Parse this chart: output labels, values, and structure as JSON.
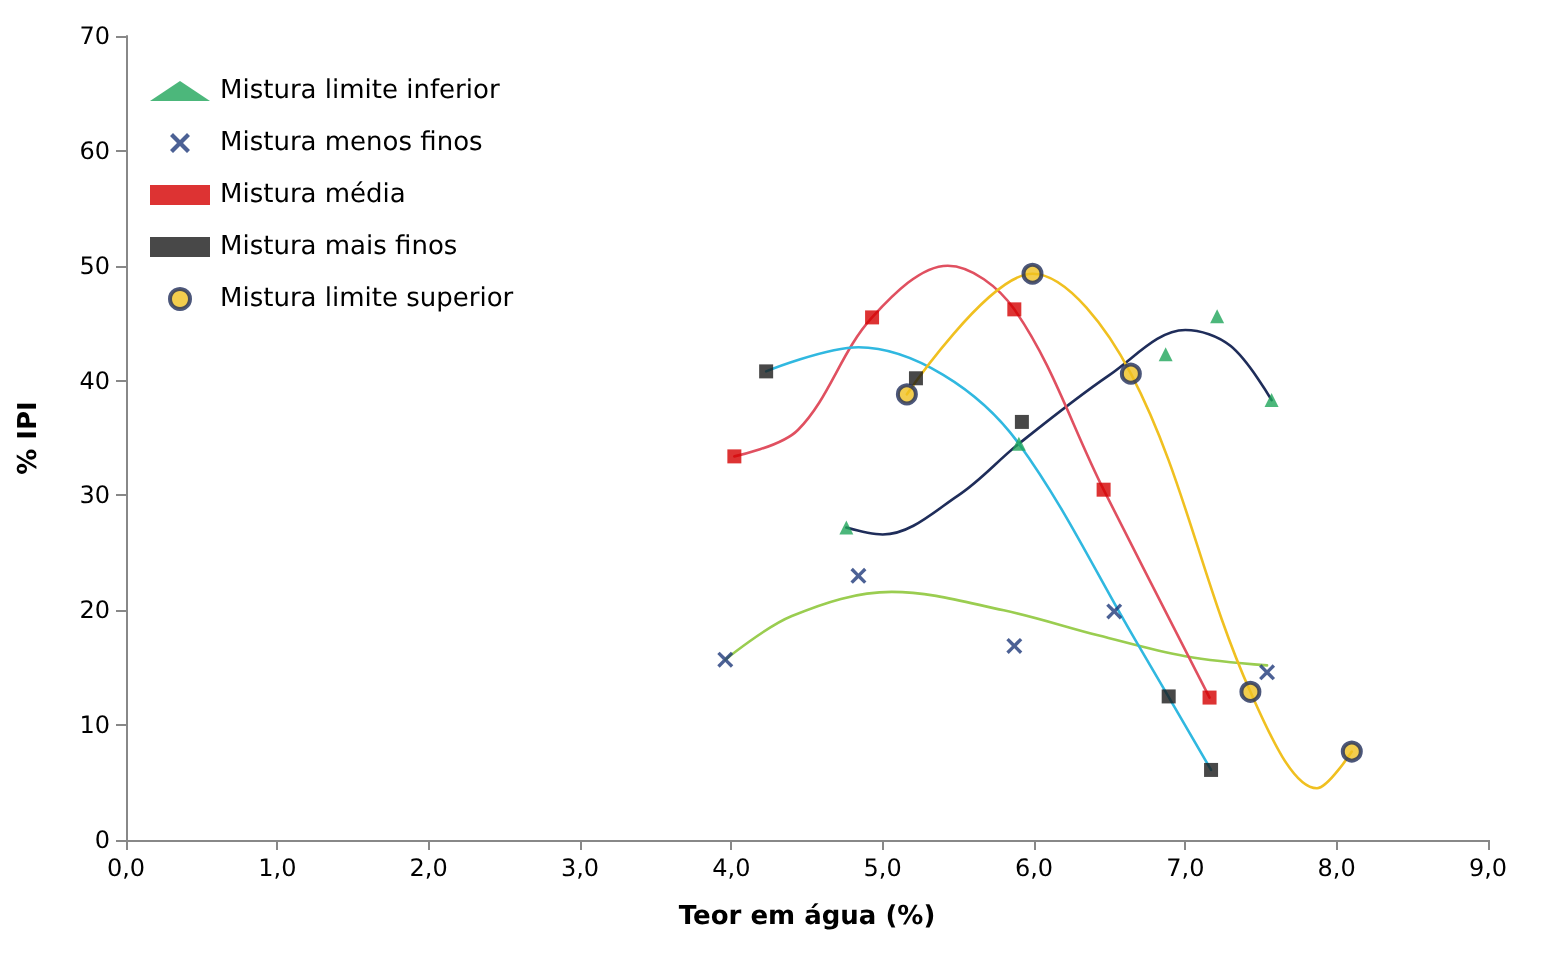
{
  "chart_data": {
    "type": "scatter",
    "xlabel": "Teor em água (%)",
    "ylabel": "% IPI",
    "xlim": [
      0,
      9
    ],
    "xticks": [
      {
        "value": 0,
        "label": "0,0"
      },
      {
        "value": 1,
        "label": "1,0"
      },
      {
        "value": 2,
        "label": "2,0"
      },
      {
        "value": 3,
        "label": "3,0"
      },
      {
        "value": 4,
        "label": "4,0"
      },
      {
        "value": 5,
        "label": "5,0"
      },
      {
        "value": 6,
        "label": "6,0"
      },
      {
        "value": 7,
        "label": "7,0"
      },
      {
        "value": 8,
        "label": "8,0"
      },
      {
        "value": 9,
        "label": "9,0"
      }
    ],
    "ylim": [
      0,
      70
    ],
    "yticks": [
      0,
      10,
      20,
      30,
      40,
      50,
      60,
      70
    ],
    "grid": false,
    "legend": "top left",
    "series": [
      {
        "name": "Mistura limite inferior",
        "color": "#1fa55a",
        "marker": "triangle",
        "x": [
          4.76,
          5.9,
          6.87,
          7.21,
          7.57
        ],
        "values": [
          27.2,
          34.5,
          42.3,
          45.6,
          38.3
        ]
      },
      {
        "name": "Mistura menos finos",
        "color": "#1f3a7a",
        "marker": "cross",
        "x": [
          3.96,
          4.84,
          5.87,
          6.53,
          7.54
        ],
        "values": [
          15.7,
          23.0,
          16.9,
          19.9,
          14.6
        ]
      },
      {
        "name": "Mistura média",
        "color": "#d40000",
        "marker": "square",
        "x": [
          4.02,
          4.93,
          5.87,
          6.46,
          7.16
        ],
        "values": [
          33.4,
          45.5,
          46.2,
          30.5,
          12.4
        ]
      },
      {
        "name": "Mistura mais finos",
        "color": "#1a1a1a",
        "marker": "square",
        "x": [
          4.23,
          5.22,
          5.92,
          6.89,
          7.17
        ],
        "values": [
          40.8,
          40.2,
          36.4,
          12.5,
          6.1
        ]
      },
      {
        "name": "Mistura limite superior",
        "color": "#f0c020",
        "marker": "circle",
        "x": [
          5.16,
          5.99,
          6.64,
          7.43,
          8.1
        ],
        "values": [
          38.8,
          49.3,
          40.6,
          12.9,
          7.7
        ]
      },
      {
        "type": "line",
        "color": "#1f2d5a",
        "marker": "none",
        "x": [
          4.76,
          5.0,
          5.5,
          5.9,
          6.5,
          7.0,
          7.3,
          7.57
        ],
        "values": [
          27.2,
          26.6,
          30.0,
          34.5,
          40.5,
          44.4,
          43.0,
          38.3
        ]
      },
      {
        "type": "line",
        "color": "#9acd50",
        "marker": "none",
        "x": [
          3.96,
          4.4,
          5.06,
          5.8,
          6.43,
          7.0,
          7.54
        ],
        "values": [
          15.7,
          19.5,
          21.6,
          20.0,
          17.8,
          16.0,
          15.2
        ]
      },
      {
        "type": "line",
        "color": "#e05060",
        "marker": "none",
        "x": [
          4.02,
          4.44,
          4.93,
          5.43,
          5.87,
          6.46,
          7.16
        ],
        "values": [
          33.4,
          35.7,
          45.5,
          50.0,
          46.2,
          30.5,
          12.4
        ]
      },
      {
        "type": "line",
        "color": "#30b8e0",
        "marker": "none",
        "x": [
          4.23,
          4.84,
          5.4,
          5.9,
          6.67,
          7.17
        ],
        "values": [
          40.8,
          42.9,
          40.5,
          34.5,
          17.4,
          6.1
        ]
      },
      {
        "type": "line",
        "color": "#f0c020",
        "marker": "none",
        "x": [
          5.16,
          5.99,
          6.64,
          7.43,
          7.87,
          8.1
        ],
        "values": [
          38.8,
          49.3,
          40.6,
          12.9,
          4.5,
          7.7
        ]
      }
    ]
  }
}
